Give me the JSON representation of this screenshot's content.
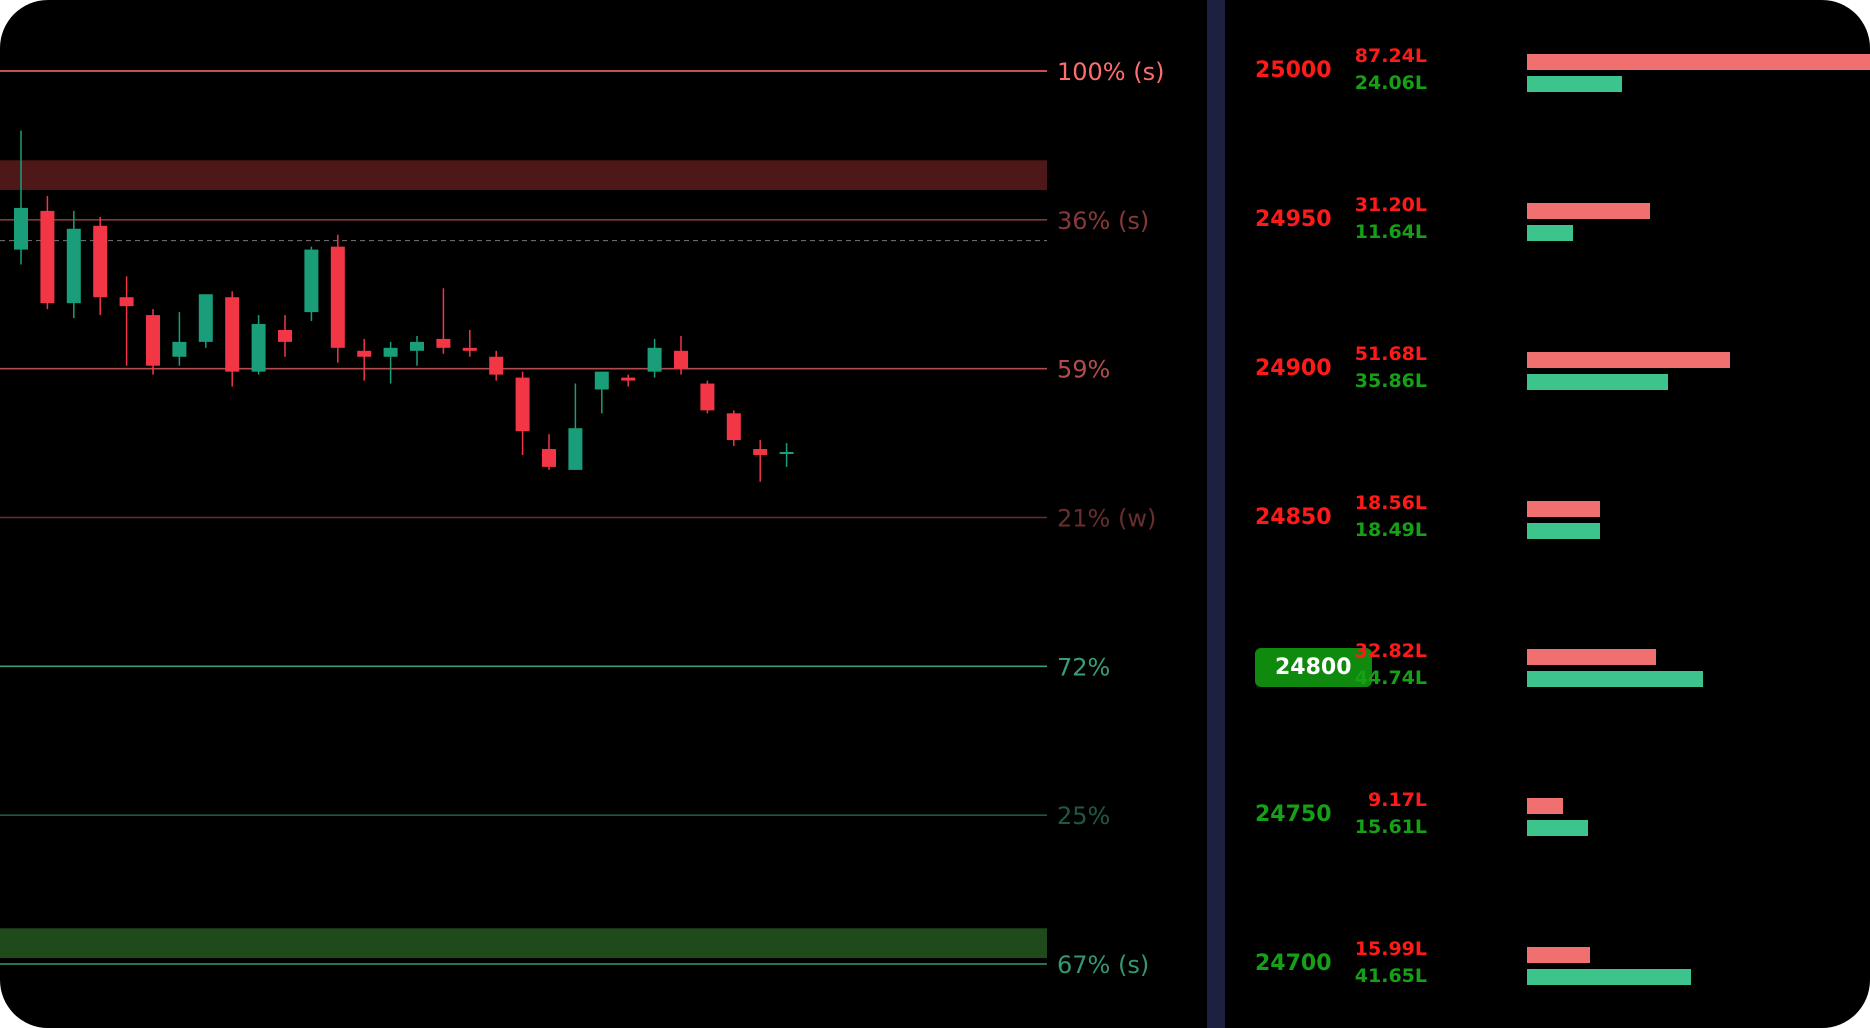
{
  "colors": {
    "bear": "#f23645",
    "bull": "#1a9e7a",
    "call_bar": "#f07070",
    "put_bar": "#3cc48c",
    "call_text": "#ff1a1a",
    "put_text": "#16a016",
    "atm_bg": "#0f8a0f"
  },
  "chart_data": {
    "type": "candlestick",
    "price_axis": {
      "top_price": 25000,
      "bottom_price": 24700,
      "unit": "index points"
    },
    "candles": [
      [
        24940,
        24980,
        24935,
        24954
      ],
      [
        24953,
        24958,
        24920,
        24922
      ],
      [
        24922,
        24953,
        24917,
        24947
      ],
      [
        24948,
        24951,
        24918,
        24924
      ],
      [
        24924,
        24931,
        24901,
        24921
      ],
      [
        24918,
        24920,
        24898,
        24901
      ],
      [
        24904,
        24919,
        24901,
        24909
      ],
      [
        24909,
        24925,
        24907,
        24925
      ],
      [
        24924,
        24926,
        24894,
        24899
      ],
      [
        24899,
        24918,
        24898,
        24915
      ],
      [
        24913,
        24918,
        24904,
        24909
      ],
      [
        24919,
        24941,
        24916,
        24940
      ],
      [
        24941,
        24945,
        24902,
        24907
      ],
      [
        24906,
        24910,
        24896,
        24904
      ],
      [
        24904,
        24909,
        24895,
        24907
      ],
      [
        24906,
        24911,
        24901,
        24909
      ],
      [
        24910,
        24927,
        24905,
        24907
      ],
      [
        24907,
        24913,
        24904,
        24906
      ],
      [
        24904,
        24906,
        24896,
        24898
      ],
      [
        24897,
        24899,
        24871,
        24879
      ],
      [
        24873,
        24878,
        24866,
        24867
      ],
      [
        24866,
        24895,
        24866,
        24880
      ],
      [
        24893,
        24899,
        24885,
        24899
      ],
      [
        24897,
        24898,
        24894,
        24896
      ],
      [
        24899,
        24910,
        24897,
        24907
      ],
      [
        24906,
        24911,
        24898,
        24900
      ],
      [
        24895,
        24896,
        24885,
        24886
      ],
      [
        24885,
        24886,
        24874,
        24876
      ],
      [
        24873,
        24876,
        24862,
        24871
      ],
      [
        24872,
        24875,
        24867,
        24872
      ]
    ],
    "levels": [
      {
        "price": 25000,
        "label": "100% (s)",
        "tone": "red",
        "strength": 1.0
      },
      {
        "price": 24950,
        "label": "36% (s)",
        "tone": "red",
        "strength": 0.36
      },
      {
        "price": 24900,
        "label": "59%",
        "tone": "red",
        "strength": 0.59
      },
      {
        "price": 24850,
        "label": "21% (w)",
        "tone": "red",
        "strength": 0.21
      },
      {
        "price": 24800,
        "label": "72%",
        "tone": "green",
        "strength": 0.72
      },
      {
        "price": 24750,
        "label": "25%",
        "tone": "green",
        "strength": 0.25
      },
      {
        "price": 24700,
        "label": "67% (s)",
        "tone": "green",
        "strength": 0.67
      }
    ],
    "zones": [
      {
        "from": 24960,
        "to": 24970,
        "tone": "red"
      },
      {
        "from": 24702,
        "to": 24712,
        "tone": "green"
      }
    ],
    "current_price": 24943,
    "oi_table": {
      "atm_strike": 24800,
      "unit": "L",
      "rows": [
        {
          "strike": "25000",
          "call": 87.24,
          "put": 24.06,
          "call_label": "87.24L",
          "put_label": "24.06L"
        },
        {
          "strike": "24950",
          "call": 31.2,
          "put": 11.64,
          "call_label": "31.20L",
          "put_label": "11.64L"
        },
        {
          "strike": "24900",
          "call": 51.68,
          "put": 35.86,
          "call_label": "51.68L",
          "put_label": "35.86L"
        },
        {
          "strike": "24850",
          "call": 18.56,
          "put": 18.49,
          "call_label": "18.56L",
          "put_label": "18.49L"
        },
        {
          "strike": "24800",
          "call": 32.82,
          "put": 44.74,
          "call_label": "32.82L",
          "put_label": "44.74L"
        },
        {
          "strike": "24750",
          "call": 9.17,
          "put": 15.61,
          "call_label": "9.17L",
          "put_label": "15.61L"
        },
        {
          "strike": "24700",
          "call": 15.99,
          "put": 41.65,
          "call_label": "15.99L",
          "put_label": "41.65L"
        }
      ]
    }
  }
}
